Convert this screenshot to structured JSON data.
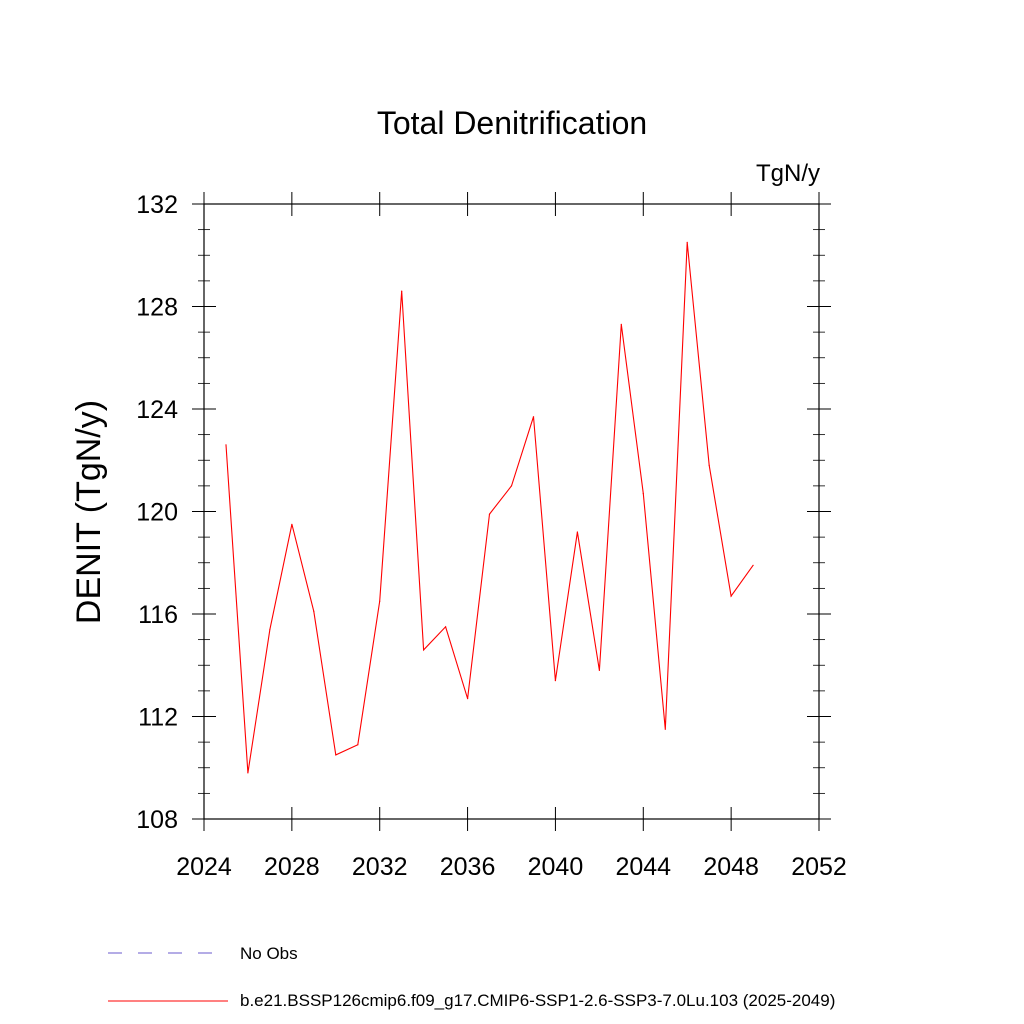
{
  "chart_data": {
    "type": "line",
    "title": "Total Denitrification",
    "units": "TgN/y",
    "ylabel": "DENIT  (TgN/y)",
    "xlabel": "",
    "xlim": [
      2024,
      2052
    ],
    "ylim": [
      108,
      132
    ],
    "x_ticks": [
      2024,
      2028,
      2032,
      2036,
      2040,
      2044,
      2048,
      2052
    ],
    "y_ticks": [
      108,
      112,
      116,
      120,
      124,
      128,
      132
    ],
    "grid": false,
    "legend_position": "bottom",
    "series": [
      {
        "name": "b.e21.BSSP126cmip6.f09_g17.CMIP6-SSP1-2.6-SSP3-7.0Lu.103 (2025-2049)",
        "color": "#ff0000",
        "x": [
          2025,
          2026,
          2027,
          2028,
          2029,
          2030,
          2031,
          2032,
          2033,
          2034,
          2035,
          2036,
          2037,
          2038,
          2039,
          2040,
          2041,
          2042,
          2043,
          2044,
          2045,
          2046,
          2047,
          2048,
          2049
        ],
        "y": [
          122.6,
          109.8,
          115.4,
          119.5,
          116.1,
          110.5,
          110.9,
          116.5,
          128.6,
          114.6,
          115.5,
          112.7,
          119.9,
          121.0,
          123.7,
          113.4,
          119.2,
          113.8,
          127.3,
          120.7,
          111.5,
          130.5,
          121.8,
          116.7,
          117.9
        ]
      }
    ],
    "legend": [
      {
        "label": "No Obs",
        "color": "#6a5acd",
        "style": "dashed"
      },
      {
        "label": "b.e21.BSSP126cmip6.f09_g17.CMIP6-SSP1-2.6-SSP3-7.0Lu.103 (2025-2049)",
        "color": "#ff0000",
        "style": "solid"
      }
    ]
  }
}
